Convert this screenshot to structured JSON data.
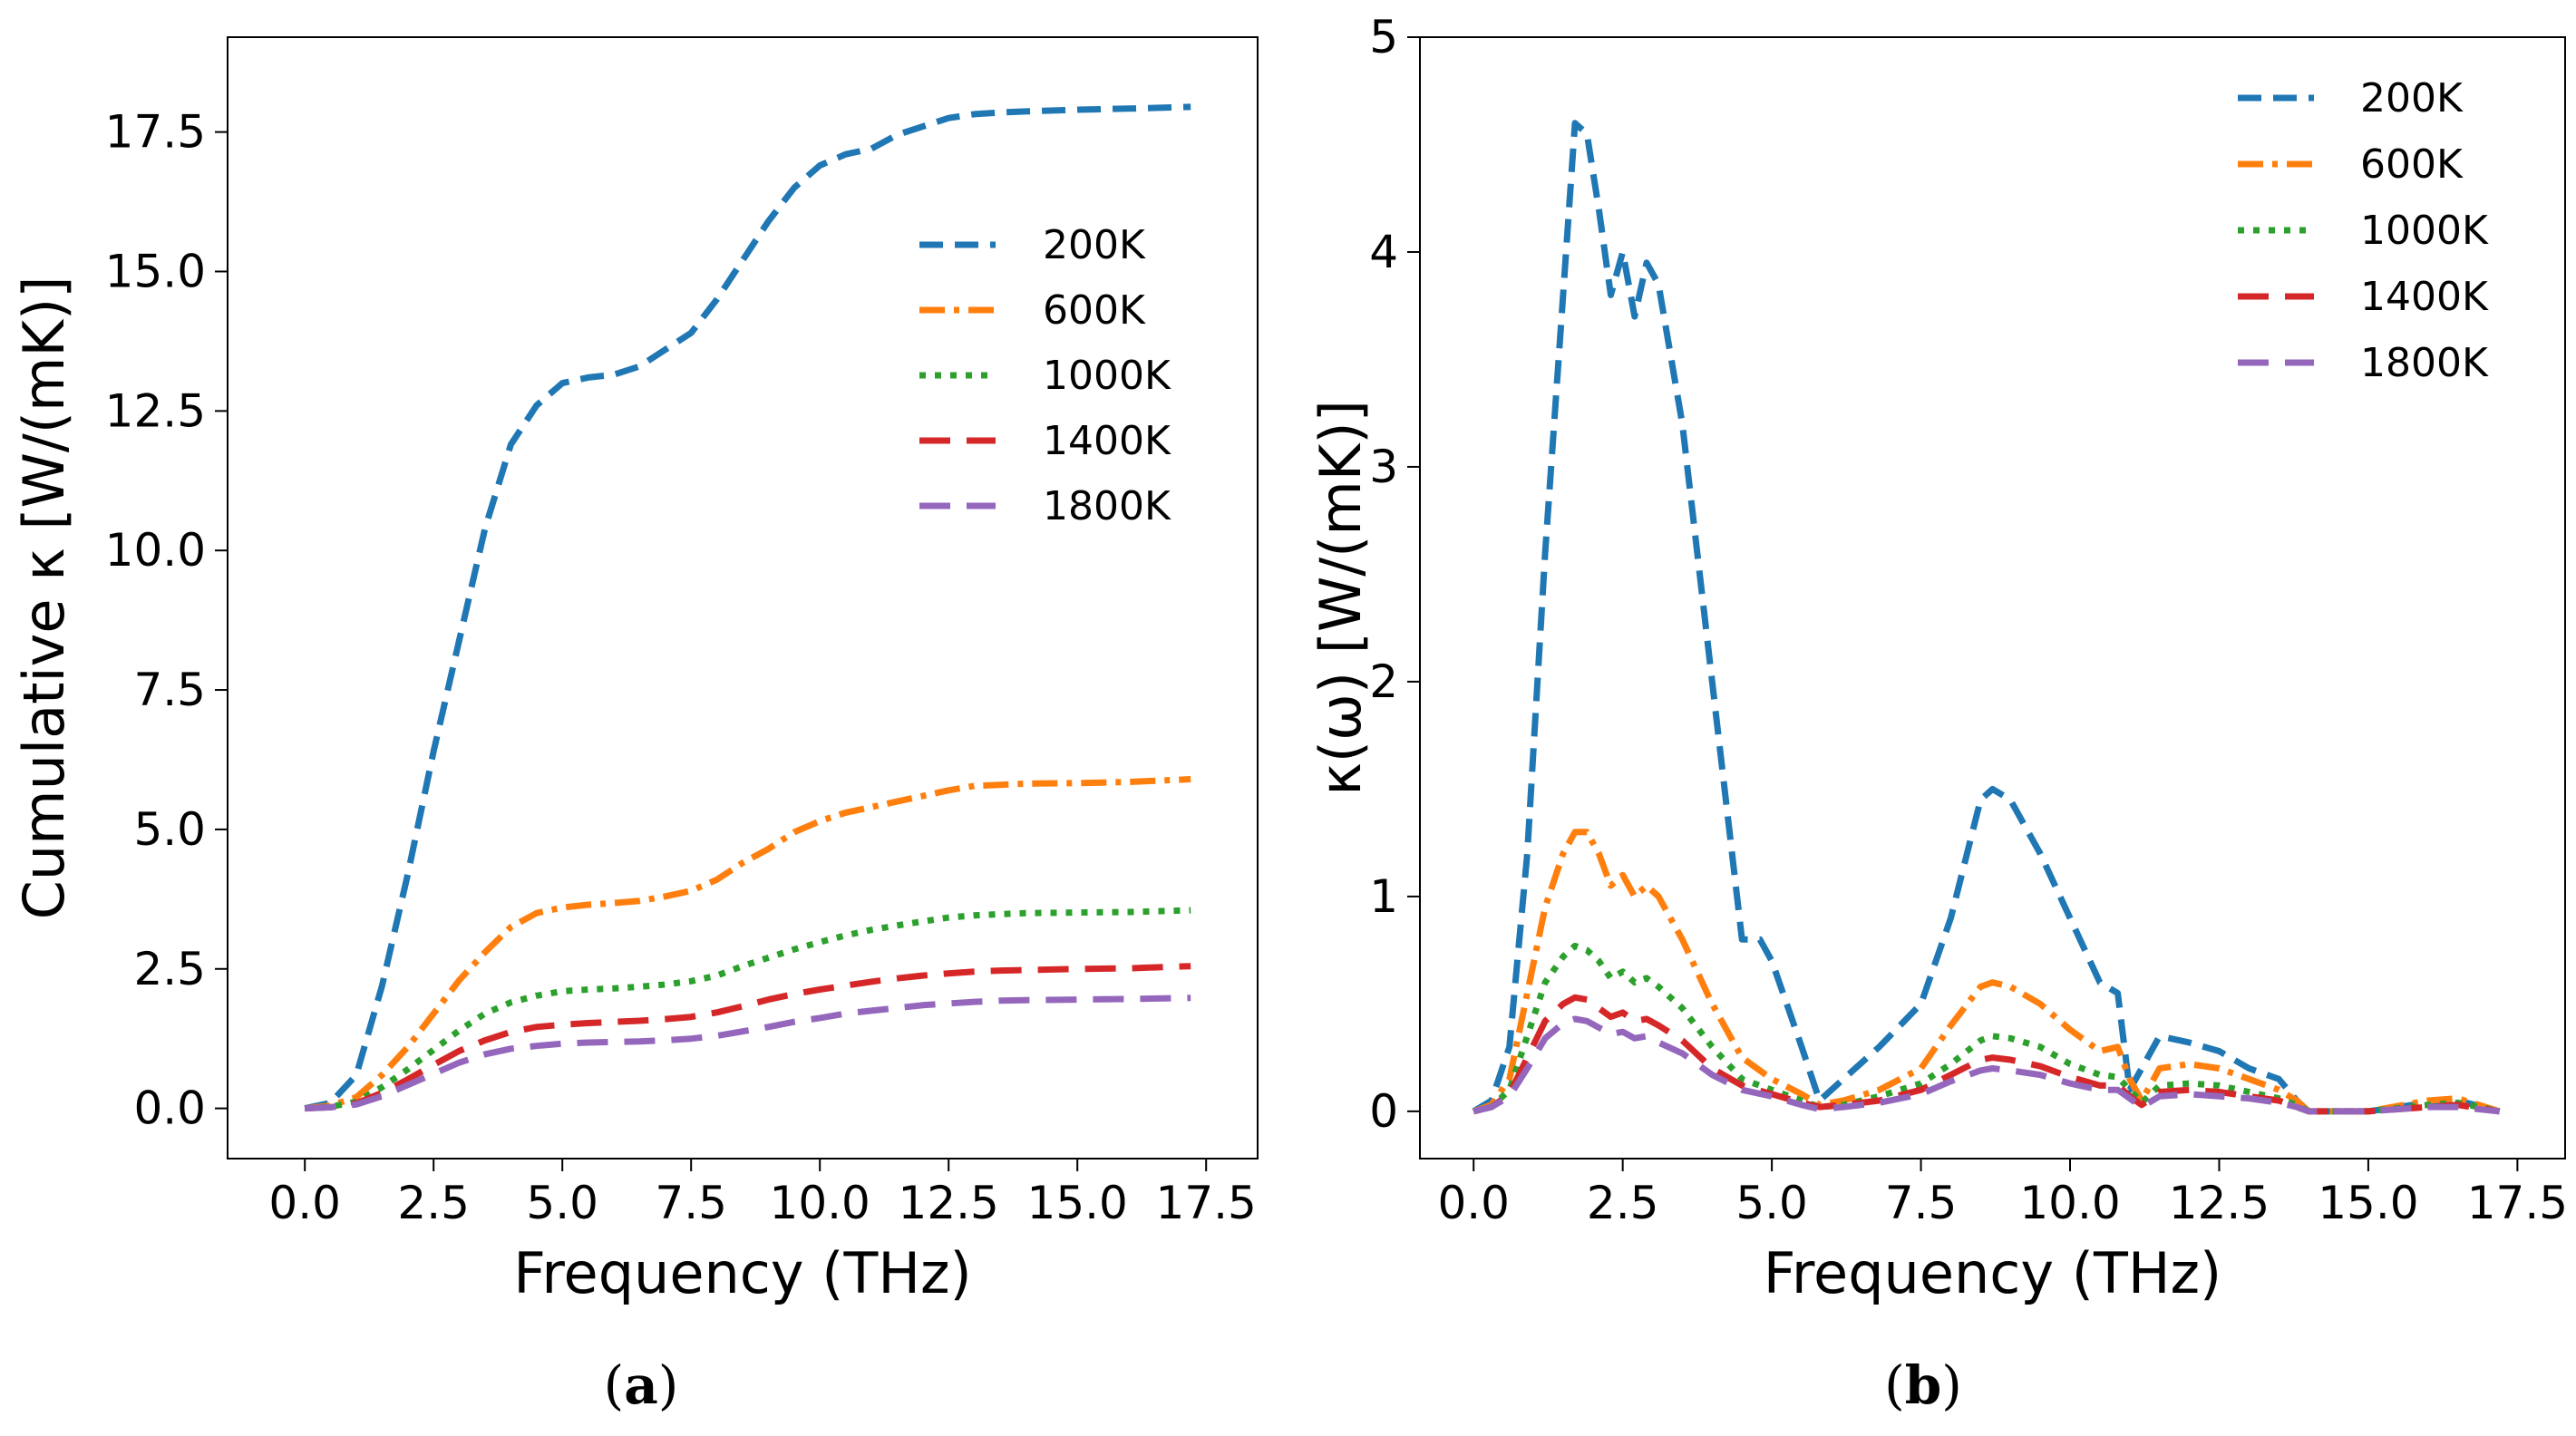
{
  "chart_data": [
    {
      "type": "line",
      "panel_label": "a",
      "title": "",
      "xlabel": "Frequency (THz)",
      "ylabel": "Cumulative κ [W/(mK)]",
      "xlim": [
        -1.5,
        18.5
      ],
      "ylim": [
        -0.9,
        19.2
      ],
      "xticks": [
        0.0,
        2.5,
        5.0,
        7.5,
        10.0,
        12.5,
        15.0,
        17.5
      ],
      "xtick_labels": [
        "0.0",
        "2.5",
        "5.0",
        "7.5",
        "10.0",
        "12.5",
        "15.0",
        "17.5"
      ],
      "yticks": [
        0.0,
        2.5,
        5.0,
        7.5,
        10.0,
        12.5,
        15.0,
        17.5
      ],
      "ytick_labels": [
        "0.0",
        "2.5",
        "5.0",
        "7.5",
        "10.0",
        "12.5",
        "15.0",
        "17.5"
      ],
      "grid": false,
      "legend_position": "upper-right",
      "series": [
        {
          "name": "200K",
          "color": "#1f77b4",
          "style": "dashed",
          "x": [
            0.0,
            0.5,
            1.0,
            1.5,
            2.0,
            2.5,
            3.0,
            3.5,
            4.0,
            4.5,
            5.0,
            5.5,
            6.0,
            6.5,
            7.0,
            7.5,
            8.0,
            8.5,
            9.0,
            9.5,
            10.0,
            10.5,
            11.0,
            11.5,
            12.0,
            12.5,
            13.0,
            13.5,
            14.0,
            15.0,
            16.0,
            17.2
          ],
          "y": [
            0.0,
            0.1,
            0.6,
            2.2,
            4.2,
            6.4,
            8.4,
            10.4,
            11.9,
            12.6,
            13.0,
            13.1,
            13.15,
            13.3,
            13.6,
            13.9,
            14.5,
            15.2,
            15.9,
            16.5,
            16.9,
            17.1,
            17.2,
            17.45,
            17.6,
            17.75,
            17.82,
            17.85,
            17.87,
            17.9,
            17.92,
            17.95
          ]
        },
        {
          "name": "600K",
          "color": "#ff7f0e",
          "style": "dashdot",
          "x": [
            0.0,
            0.5,
            1.0,
            1.5,
            2.0,
            2.5,
            3.0,
            3.5,
            4.0,
            4.5,
            5.0,
            5.5,
            6.0,
            6.5,
            7.0,
            7.5,
            8.0,
            8.5,
            9.0,
            9.5,
            10.0,
            10.5,
            11.0,
            11.5,
            12.0,
            12.5,
            13.0,
            13.5,
            14.0,
            15.0,
            16.0,
            17.2
          ],
          "y": [
            0.0,
            0.05,
            0.2,
            0.6,
            1.1,
            1.7,
            2.3,
            2.8,
            3.25,
            3.5,
            3.6,
            3.65,
            3.68,
            3.72,
            3.8,
            3.9,
            4.1,
            4.4,
            4.65,
            4.95,
            5.15,
            5.3,
            5.4,
            5.5,
            5.6,
            5.7,
            5.78,
            5.8,
            5.82,
            5.83,
            5.85,
            5.9
          ]
        },
        {
          "name": "1000K",
          "color": "#2ca02c",
          "style": "dotted",
          "x": [
            0.0,
            0.5,
            1.0,
            1.5,
            2.0,
            2.5,
            3.0,
            3.5,
            4.0,
            4.5,
            5.0,
            5.5,
            6.0,
            6.5,
            7.0,
            7.5,
            8.0,
            8.5,
            9.0,
            9.5,
            10.0,
            10.5,
            11.0,
            11.5,
            12.0,
            12.5,
            13.0,
            13.5,
            14.0,
            15.0,
            16.0,
            17.2
          ],
          "y": [
            0.0,
            0.03,
            0.12,
            0.38,
            0.7,
            1.05,
            1.4,
            1.7,
            1.9,
            2.02,
            2.1,
            2.13,
            2.15,
            2.18,
            2.22,
            2.28,
            2.38,
            2.55,
            2.7,
            2.85,
            2.98,
            3.1,
            3.2,
            3.28,
            3.35,
            3.42,
            3.46,
            3.48,
            3.5,
            3.51,
            3.52,
            3.55
          ]
        },
        {
          "name": "1400K",
          "color": "#d62728",
          "style": "longdash",
          "x": [
            0.0,
            0.5,
            1.0,
            1.5,
            2.0,
            2.5,
            3.0,
            3.5,
            4.0,
            4.5,
            5.0,
            5.5,
            6.0,
            6.5,
            7.0,
            7.5,
            8.0,
            8.5,
            9.0,
            9.5,
            10.0,
            10.5,
            11.0,
            11.5,
            12.0,
            12.5,
            13.0,
            13.5,
            14.0,
            15.0,
            16.0,
            17.2
          ],
          "y": [
            0.0,
            0.02,
            0.09,
            0.28,
            0.52,
            0.78,
            1.03,
            1.22,
            1.37,
            1.46,
            1.5,
            1.53,
            1.55,
            1.57,
            1.6,
            1.64,
            1.72,
            1.83,
            1.95,
            2.05,
            2.13,
            2.2,
            2.27,
            2.33,
            2.38,
            2.42,
            2.45,
            2.47,
            2.48,
            2.5,
            2.51,
            2.55
          ]
        },
        {
          "name": "1800K",
          "color": "#9467bd",
          "style": "longdash",
          "x": [
            0.0,
            0.5,
            1.0,
            1.5,
            2.0,
            2.5,
            3.0,
            3.5,
            4.0,
            4.5,
            5.0,
            5.5,
            6.0,
            6.5,
            7.0,
            7.5,
            8.0,
            8.5,
            9.0,
            9.5,
            10.0,
            10.5,
            11.0,
            11.5,
            12.0,
            12.5,
            13.0,
            13.5,
            14.0,
            15.0,
            16.0,
            17.2
          ],
          "y": [
            0.0,
            0.02,
            0.07,
            0.22,
            0.42,
            0.62,
            0.82,
            0.97,
            1.07,
            1.12,
            1.16,
            1.18,
            1.19,
            1.2,
            1.22,
            1.25,
            1.3,
            1.38,
            1.46,
            1.55,
            1.62,
            1.7,
            1.75,
            1.8,
            1.85,
            1.88,
            1.91,
            1.93,
            1.94,
            1.95,
            1.96,
            1.98
          ]
        }
      ]
    },
    {
      "type": "line",
      "panel_label": "b",
      "title": "",
      "xlabel": "Frequency (THz)",
      "ylabel": "κ(ω) [W/(mK)]",
      "xlim": [
        -0.9,
        18.3
      ],
      "ylim": [
        -0.22,
        5.0
      ],
      "xticks": [
        0.0,
        2.5,
        5.0,
        7.5,
        10.0,
        12.5,
        15.0,
        17.5
      ],
      "xtick_labels": [
        "0.0",
        "2.5",
        "5.0",
        "7.5",
        "10.0",
        "12.5",
        "15.0",
        "17.5"
      ],
      "yticks": [
        0,
        1,
        2,
        3,
        4,
        5
      ],
      "ytick_labels": [
        "0",
        "1",
        "2",
        "3",
        "4",
        "5"
      ],
      "grid": false,
      "legend_position": "upper-right",
      "series": [
        {
          "name": "200K",
          "color": "#1f77b4",
          "style": "dashed",
          "x": [
            0.0,
            0.3,
            0.6,
            0.9,
            1.2,
            1.5,
            1.7,
            1.9,
            2.1,
            2.3,
            2.5,
            2.7,
            2.9,
            3.1,
            3.5,
            4.0,
            4.5,
            4.8,
            5.0,
            5.5,
            5.8,
            6.2,
            6.8,
            7.5,
            8.0,
            8.5,
            8.7,
            9.0,
            9.5,
            10.0,
            10.5,
            10.8,
            11.0,
            11.2,
            11.5,
            12.0,
            12.5,
            13.0,
            13.5,
            13.8,
            14.0,
            15.0,
            16.0,
            16.5,
            17.2
          ],
          "y": [
            0.0,
            0.05,
            0.3,
            1.2,
            2.6,
            3.8,
            4.6,
            4.55,
            4.2,
            3.8,
            4.0,
            3.7,
            3.95,
            3.85,
            3.2,
            2.0,
            0.8,
            0.8,
            0.7,
            0.3,
            0.05,
            0.15,
            0.3,
            0.5,
            0.9,
            1.45,
            1.5,
            1.45,
            1.2,
            0.9,
            0.6,
            0.55,
            0.1,
            0.2,
            0.35,
            0.32,
            0.28,
            0.2,
            0.15,
            0.05,
            0.0,
            0.0,
            0.04,
            0.05,
            0.0
          ]
        },
        {
          "name": "600K",
          "color": "#ff7f0e",
          "style": "dashdot",
          "x": [
            0.0,
            0.3,
            0.6,
            0.9,
            1.2,
            1.5,
            1.7,
            1.9,
            2.1,
            2.3,
            2.5,
            2.7,
            2.9,
            3.1,
            3.5,
            4.0,
            4.5,
            5.0,
            5.5,
            5.8,
            6.2,
            6.8,
            7.5,
            8.0,
            8.5,
            8.7,
            9.0,
            9.5,
            10.0,
            10.5,
            10.8,
            11.0,
            11.2,
            11.5,
            12.0,
            12.5,
            13.0,
            13.5,
            13.8,
            14.0,
            15.0,
            16.0,
            16.5,
            17.2
          ],
          "y": [
            0.0,
            0.03,
            0.15,
            0.55,
            0.95,
            1.2,
            1.3,
            1.3,
            1.2,
            1.05,
            1.1,
            1.0,
            1.05,
            1.0,
            0.8,
            0.5,
            0.25,
            0.15,
            0.08,
            0.03,
            0.05,
            0.1,
            0.2,
            0.4,
            0.58,
            0.6,
            0.58,
            0.5,
            0.38,
            0.28,
            0.3,
            0.15,
            0.05,
            0.2,
            0.22,
            0.2,
            0.15,
            0.1,
            0.05,
            0.0,
            0.0,
            0.05,
            0.06,
            0.0
          ]
        },
        {
          "name": "1000K",
          "color": "#2ca02c",
          "style": "dotted",
          "x": [
            0.0,
            0.3,
            0.6,
            0.9,
            1.2,
            1.5,
            1.7,
            1.9,
            2.1,
            2.3,
            2.5,
            2.7,
            2.9,
            3.1,
            3.5,
            4.0,
            4.5,
            5.0,
            5.5,
            5.8,
            6.2,
            6.8,
            7.5,
            8.0,
            8.5,
            8.7,
            9.0,
            9.5,
            10.0,
            10.5,
            10.8,
            11.0,
            11.2,
            11.5,
            12.0,
            12.5,
            13.0,
            13.5,
            13.8,
            14.0,
            15.0,
            16.0,
            16.5,
            17.2
          ],
          "y": [
            0.0,
            0.02,
            0.1,
            0.35,
            0.6,
            0.72,
            0.77,
            0.75,
            0.7,
            0.62,
            0.65,
            0.6,
            0.62,
            0.58,
            0.48,
            0.3,
            0.15,
            0.1,
            0.05,
            0.02,
            0.03,
            0.07,
            0.13,
            0.22,
            0.33,
            0.35,
            0.34,
            0.3,
            0.22,
            0.17,
            0.16,
            0.1,
            0.04,
            0.12,
            0.13,
            0.12,
            0.09,
            0.06,
            0.03,
            0.0,
            0.0,
            0.03,
            0.04,
            0.0
          ]
        },
        {
          "name": "1400K",
          "color": "#d62728",
          "style": "longdash",
          "x": [
            0.0,
            0.3,
            0.6,
            0.9,
            1.2,
            1.5,
            1.7,
            1.9,
            2.1,
            2.3,
            2.5,
            2.7,
            2.9,
            3.1,
            3.5,
            4.0,
            4.5,
            5.0,
            5.5,
            5.8,
            6.2,
            6.8,
            7.5,
            8.0,
            8.5,
            8.7,
            9.0,
            9.5,
            10.0,
            10.5,
            10.8,
            11.0,
            11.2,
            11.5,
            12.0,
            12.5,
            13.0,
            13.5,
            13.8,
            14.0,
            15.0,
            16.0,
            16.5,
            17.2
          ],
          "y": [
            0.0,
            0.02,
            0.08,
            0.25,
            0.42,
            0.5,
            0.53,
            0.52,
            0.48,
            0.44,
            0.46,
            0.42,
            0.43,
            0.4,
            0.33,
            0.2,
            0.12,
            0.08,
            0.04,
            0.02,
            0.03,
            0.05,
            0.1,
            0.17,
            0.24,
            0.25,
            0.24,
            0.21,
            0.16,
            0.12,
            0.12,
            0.07,
            0.03,
            0.09,
            0.1,
            0.09,
            0.07,
            0.05,
            0.02,
            0.0,
            0.0,
            0.02,
            0.03,
            0.0
          ]
        },
        {
          "name": "1800K",
          "color": "#9467bd",
          "style": "longdash",
          "x": [
            0.0,
            0.3,
            0.6,
            0.9,
            1.2,
            1.5,
            1.7,
            1.9,
            2.1,
            2.3,
            2.5,
            2.7,
            2.9,
            3.1,
            3.5,
            4.0,
            4.5,
            5.0,
            5.5,
            5.8,
            6.2,
            6.8,
            7.5,
            8.0,
            8.5,
            8.7,
            9.0,
            9.5,
            10.0,
            10.5,
            10.8,
            11.0,
            11.2,
            11.5,
            12.0,
            12.5,
            13.0,
            13.5,
            13.8,
            14.0,
            15.0,
            16.0,
            16.5,
            17.2
          ],
          "y": [
            0.0,
            0.02,
            0.07,
            0.2,
            0.34,
            0.41,
            0.43,
            0.42,
            0.39,
            0.36,
            0.37,
            0.34,
            0.35,
            0.32,
            0.27,
            0.17,
            0.1,
            0.07,
            0.03,
            0.01,
            0.02,
            0.04,
            0.08,
            0.14,
            0.19,
            0.2,
            0.19,
            0.17,
            0.13,
            0.1,
            0.1,
            0.06,
            0.02,
            0.07,
            0.08,
            0.07,
            0.06,
            0.04,
            0.02,
            0.0,
            0.0,
            0.02,
            0.02,
            0.0
          ]
        }
      ]
    }
  ],
  "captions": {
    "a": {
      "open": "(",
      "letter": "a",
      "close": ")"
    },
    "b": {
      "open": "(",
      "letter": "b",
      "close": ")"
    }
  }
}
